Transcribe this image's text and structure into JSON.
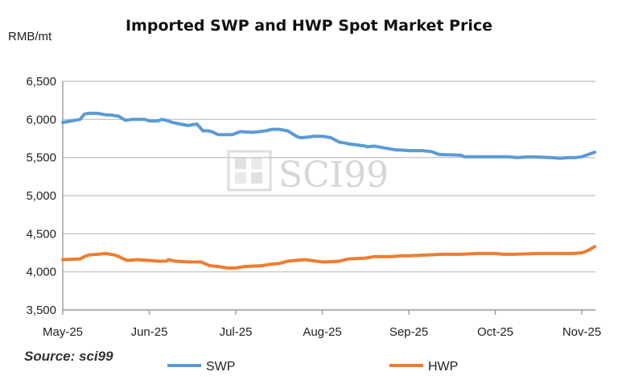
{
  "chart_data": {
    "type": "line",
    "title": "Imported SWP and HWP Spot Market Price",
    "ylabel": "RMB/mt",
    "xlabel": "",
    "ylim": [
      3500,
      6500
    ],
    "yticks": [
      3500,
      4000,
      4500,
      5000,
      5500,
      6000,
      6500
    ],
    "ytick_labels": [
      "3,500",
      "4,000",
      "4,500",
      "5,000",
      "5,500",
      "6,000",
      "6,500"
    ],
    "categories": [
      "May-25",
      "Jun-25",
      "Jul-25",
      "Aug-25",
      "Sep-25",
      "Oct-25",
      "Nov-25"
    ],
    "x_range": [
      0,
      6.15
    ],
    "grid": true,
    "legend_position": "bottom",
    "series": [
      {
        "name": "SWP",
        "color": "#5b9bd5",
        "x": [
          0,
          0.2,
          0.25,
          0.3,
          0.4,
          0.5,
          0.55,
          0.65,
          0.72,
          0.74,
          0.8,
          0.95,
          1.0,
          1.1,
          1.15,
          1.22,
          1.27,
          1.35,
          1.45,
          1.55,
          1.62,
          1.68,
          1.72,
          1.8,
          1.9,
          1.96,
          2.05,
          2.2,
          2.35,
          2.42,
          2.5,
          2.6,
          2.7,
          2.75,
          2.85,
          2.9,
          3.0,
          3.1,
          3.2,
          3.27,
          3.3,
          3.5,
          3.52,
          3.6,
          3.75,
          3.85,
          3.9,
          4.0,
          4.15,
          4.25,
          4.28,
          4.35,
          4.6,
          4.65,
          4.75,
          5.05,
          5.15,
          5.25,
          5.4,
          5.65,
          5.75,
          5.85,
          5.93,
          6.0,
          6.05,
          6.1,
          6.15
        ],
        "values": [
          5960,
          6000,
          6070,
          6080,
          6080,
          6060,
          6060,
          6040,
          5990,
          5990,
          6000,
          6000,
          5980,
          5980,
          6000,
          5980,
          5960,
          5940,
          5920,
          5940,
          5850,
          5850,
          5840,
          5800,
          5800,
          5800,
          5840,
          5830,
          5850,
          5870,
          5870,
          5850,
          5780,
          5760,
          5770,
          5780,
          5780,
          5760,
          5700,
          5690,
          5680,
          5650,
          5640,
          5650,
          5620,
          5600,
          5600,
          5590,
          5590,
          5580,
          5570,
          5540,
          5530,
          5510,
          5510,
          5510,
          5510,
          5500,
          5510,
          5500,
          5490,
          5500,
          5500,
          5510,
          5530,
          5550,
          5570
        ]
      },
      {
        "name": "HWP",
        "color": "#ed7d31",
        "x": [
          0,
          0.2,
          0.25,
          0.3,
          0.4,
          0.5,
          0.6,
          0.65,
          0.7,
          0.75,
          0.85,
          1.0,
          1.1,
          1.2,
          1.22,
          1.3,
          1.45,
          1.6,
          1.7,
          1.8,
          1.9,
          2.0,
          2.1,
          2.3,
          2.4,
          2.5,
          2.6,
          2.8,
          3.0,
          3.05,
          3.2,
          3.3,
          3.5,
          3.6,
          3.8,
          3.9,
          4.0,
          4.2,
          4.4,
          4.6,
          4.8,
          5.0,
          5.1,
          5.2,
          5.5,
          5.7,
          5.9,
          6.0,
          6.05,
          6.1,
          6.15
        ],
        "values": [
          4160,
          4170,
          4200,
          4220,
          4230,
          4240,
          4220,
          4200,
          4170,
          4150,
          4160,
          4150,
          4140,
          4140,
          4160,
          4140,
          4130,
          4130,
          4080,
          4070,
          4050,
          4050,
          4070,
          4080,
          4100,
          4110,
          4140,
          4160,
          4130,
          4130,
          4140,
          4170,
          4180,
          4200,
          4200,
          4210,
          4210,
          4220,
          4230,
          4230,
          4240,
          4240,
          4230,
          4230,
          4240,
          4240,
          4240,
          4250,
          4270,
          4300,
          4330
        ]
      }
    ]
  },
  "source": "Source: sci99",
  "watermark": "SCI99"
}
